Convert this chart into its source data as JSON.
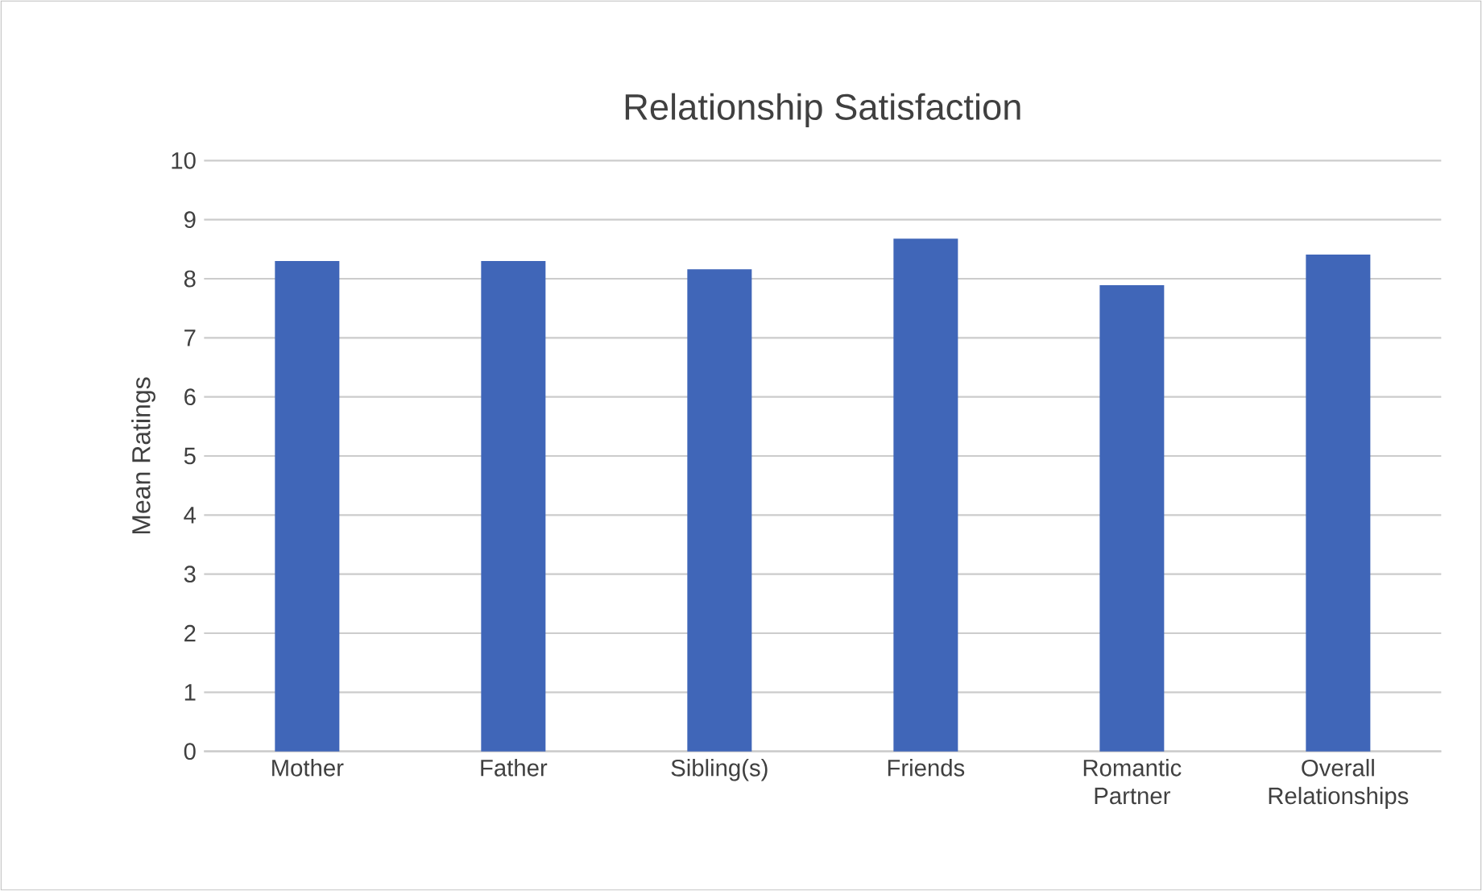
{
  "chart_data": {
    "type": "bar",
    "title": "Relationship Satisfaction",
    "ylabel": "Mean Ratings",
    "categories": [
      "Mother",
      "Father",
      "Sibling(s)",
      "Friends",
      "Romantic Partner",
      "Overall Relationships"
    ],
    "values": [
      8.3,
      8.3,
      8.16,
      8.68,
      7.89,
      8.41
    ],
    "color": "#4066b8",
    "ylim": [
      0,
      10
    ],
    "yticks": [
      0,
      1,
      2,
      3,
      4,
      5,
      6,
      7,
      8,
      9,
      10
    ],
    "grid": "y"
  }
}
